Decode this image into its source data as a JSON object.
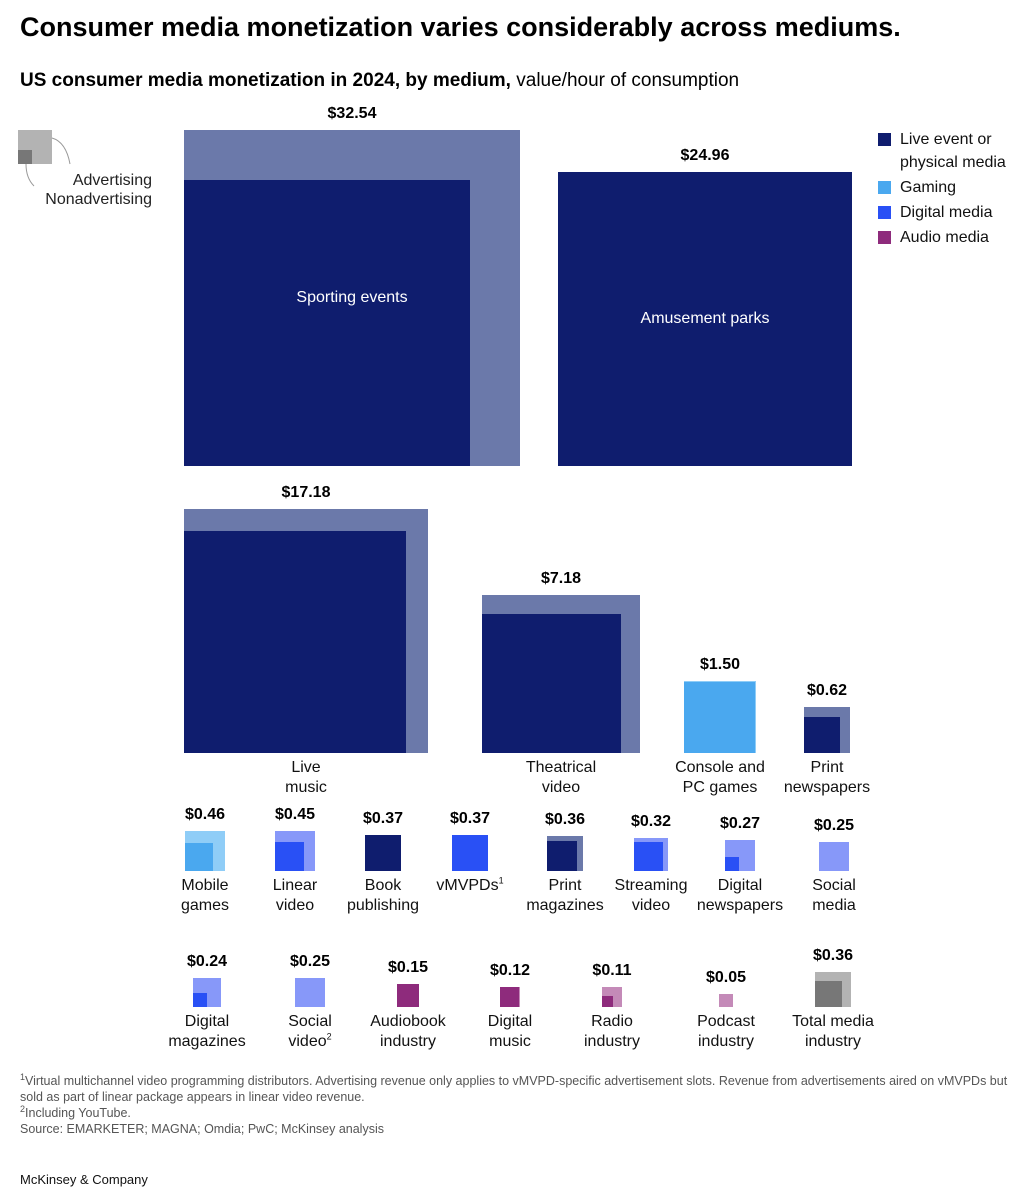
{
  "title": "Consumer media monetization varies considerably across mediums.",
  "subtitle": {
    "bold": "US consumer media monetization in 2024, by medium,",
    "regular": "value/hour of consumption"
  },
  "key": {
    "advertising": "Advertising",
    "nonadvertising": "Nonadvertising"
  },
  "colors": {
    "live_event": "#0f1d6e",
    "live_event_adv": "#6b79aa",
    "gaming": "#4aa8ef",
    "gaming_adv": "#8fcdf7",
    "digital": "#2950f5",
    "digital_adv": "#8798f9",
    "audio": "#8e2b7c",
    "audio_adv": "#c48ab8",
    "total": "#777777",
    "total_adv": "#b3b3b3"
  },
  "legend": [
    {
      "label": "Live event or physical media",
      "color": "#0f1d6e"
    },
    {
      "label": "Gaming",
      "color": "#4aa8ef"
    },
    {
      "label": "Digital media",
      "color": "#2950f5"
    },
    {
      "label": "Audio media",
      "color": "#8e2b7c"
    }
  ],
  "chart_data": {
    "type": "proportional-area squares",
    "title": "US consumer media monetization in 2024, by medium",
    "unit": "value/hour of consumption ($)",
    "series": [
      "Advertising",
      "Nonadvertising"
    ],
    "items": [
      {
        "name": "Sporting events",
        "value": 32.54,
        "value_label": "$32.54",
        "nonadvertising_approx": 23.5,
        "group": "live_event",
        "label_inside": true
      },
      {
        "name": "Amusement parks",
        "value": 24.96,
        "value_label": "$24.96",
        "nonadvertising_approx": 24.96,
        "group": "live_event",
        "label_inside": true
      },
      {
        "name": "Live music",
        "value": 17.18,
        "value_label": "$17.18",
        "nonadvertising_approx": 14.2,
        "group": "live_event"
      },
      {
        "name": "Theatrical video",
        "value": 7.18,
        "value_label": "$7.18",
        "nonadvertising_approx": 5.6,
        "group": "live_event"
      },
      {
        "name": "Console and PC games",
        "value": 1.5,
        "value_label": "$1.50",
        "nonadvertising_approx": 1.47,
        "group": "gaming"
      },
      {
        "name": "Print newspapers",
        "value": 0.62,
        "value_label": "$0.62",
        "nonadvertising_approx": 0.38,
        "group": "live_event"
      },
      {
        "name": "Mobile games",
        "value": 0.46,
        "value_label": "$0.46",
        "nonadvertising_approx": 0.23,
        "group": "gaming"
      },
      {
        "name": "Linear video",
        "value": 0.45,
        "value_label": "$0.45",
        "nonadvertising_approx": 0.24,
        "group": "digital"
      },
      {
        "name": "Book publishing",
        "value": 0.37,
        "value_label": "$0.37",
        "nonadvertising_approx": 0.37,
        "group": "live_event"
      },
      {
        "name": "vMVPDs",
        "sup": "1",
        "value": 0.37,
        "value_label": "$0.37",
        "nonadvertising_approx": 0.37,
        "group": "digital"
      },
      {
        "name": "Print magazines",
        "value": 0.36,
        "value_label": "$0.36",
        "nonadvertising_approx": 0.26,
        "group": "live_event"
      },
      {
        "name": "Streaming video",
        "value": 0.32,
        "value_label": "$0.32",
        "nonadvertising_approx": 0.24,
        "group": "digital"
      },
      {
        "name": "Digital newspapers",
        "value": 0.27,
        "value_label": "$0.27",
        "nonadvertising_approx": 0.06,
        "group": "digital"
      },
      {
        "name": "Social media",
        "value": 0.25,
        "value_label": "$0.25",
        "nonadvertising_approx": 0,
        "group": "digital"
      },
      {
        "name": "Digital magazines",
        "value": 0.24,
        "value_label": "$0.24",
        "nonadvertising_approx": 0.06,
        "group": "digital"
      },
      {
        "name": "Social video",
        "sup": "2",
        "value": 0.25,
        "value_label": "$0.25",
        "nonadvertising_approx": 0,
        "group": "digital"
      },
      {
        "name": "Audiobook industry",
        "value": 0.15,
        "value_label": "$0.15",
        "nonadvertising_approx": 0.15,
        "group": "audio"
      },
      {
        "name": "Digital music",
        "value": 0.12,
        "value_label": "$0.12",
        "nonadvertising_approx": 0.11,
        "group": "audio"
      },
      {
        "name": "Radio industry",
        "value": 0.11,
        "value_label": "$0.11",
        "nonadvertising_approx": 0.035,
        "group": "audio"
      },
      {
        "name": "Podcast industry",
        "value": 0.05,
        "value_label": "$0.05",
        "nonadvertising_approx": 0,
        "group": "audio"
      },
      {
        "name": "Total media industry",
        "value": 0.36,
        "value_label": "$0.36",
        "nonadvertising_approx": 0.2,
        "group": "total"
      }
    ]
  },
  "footnotes": {
    "note1_mark": "1",
    "note1": "Virtual multichannel video programming distributors. Advertising revenue only applies to vMVPD-specific advertisement slots. Revenue from advertisements aired on vMVPDs but sold as part of linear package appears in linear video revenue.",
    "note2_mark": "2",
    "note2": "Including YouTube.",
    "source": "Source: EMARKETER; MAGNA; Omdia; PwC; McKinsey analysis"
  },
  "brand": "McKinsey & Company"
}
